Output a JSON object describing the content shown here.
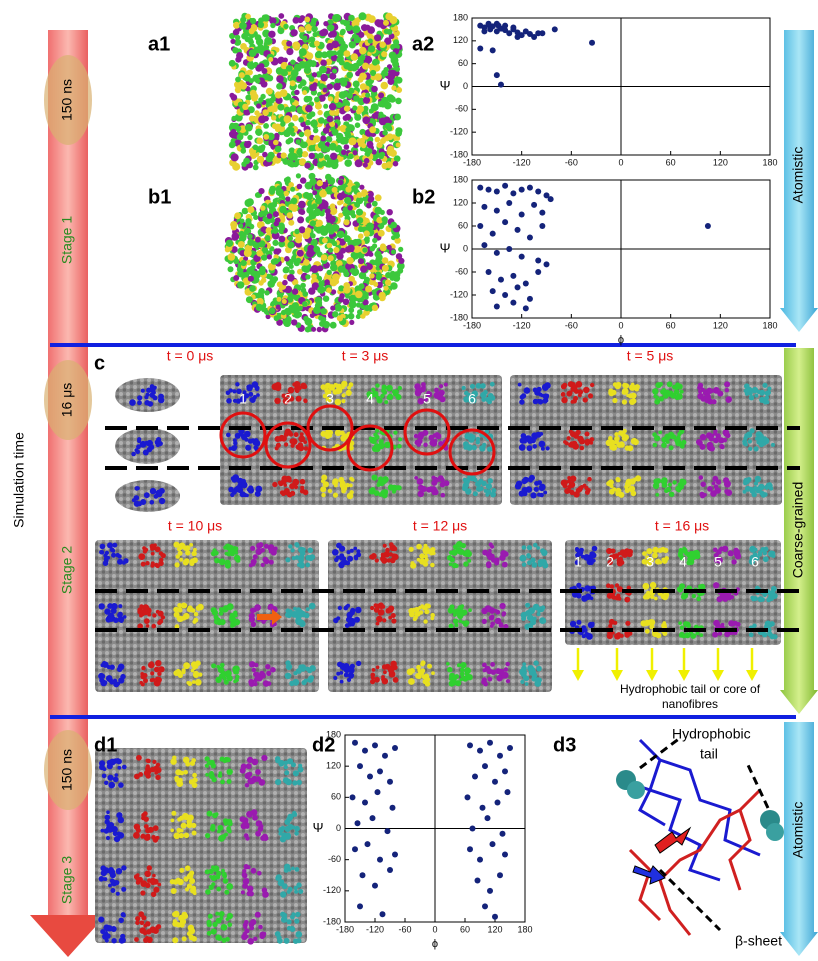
{
  "chart_data": [
    {
      "type": "scatter",
      "ylabel": "Ψ",
      "color": "#14237a",
      "x": [
        -170,
        -165,
        -160,
        -158,
        -155,
        -150,
        -148,
        -145,
        -140,
        -135,
        -130,
        -125,
        -120,
        -115,
        -110,
        -105,
        -100,
        -160,
        -150,
        -140,
        -130,
        -170,
        -155,
        -150,
        -145,
        -80,
        -35,
        -165,
        -125,
        -95
      ],
      "y": [
        160,
        155,
        162,
        150,
        158,
        145,
        160,
        152,
        148,
        140,
        150,
        142,
        135,
        145,
        138,
        130,
        140,
        165,
        165,
        160,
        155,
        100,
        95,
        30,
        5,
        150,
        115,
        145,
        130,
        140
      ],
      "xlim": [
        -180,
        180
      ],
      "ylim": [
        -180,
        180
      ],
      "xticks": [
        -180,
        -120,
        -60,
        0,
        60,
        120,
        180
      ],
      "yticks": [
        -180,
        -120,
        -60,
        0,
        60,
        120,
        180
      ]
    },
    {
      "type": "scatter",
      "xlabel": "ϕ",
      "ylabel": "Ψ",
      "color": "#14237a",
      "x": [
        -170,
        -160,
        -150,
        -140,
        -130,
        -120,
        -110,
        -100,
        -90,
        -85,
        -165,
        -150,
        -135,
        -120,
        -105,
        -95,
        -170,
        -155,
        -140,
        -125,
        -110,
        -95,
        -165,
        -150,
        -135,
        -120,
        -100,
        -90,
        -160,
        -145,
        -130,
        -115,
        -100,
        -155,
        -140,
        -125,
        -110,
        -150,
        -130,
        -115,
        105
      ],
      "y": [
        160,
        155,
        150,
        165,
        145,
        155,
        160,
        150,
        140,
        130,
        110,
        100,
        120,
        90,
        115,
        95,
        60,
        40,
        70,
        50,
        30,
        60,
        10,
        -10,
        0,
        -20,
        -30,
        -40,
        -60,
        -80,
        -70,
        -90,
        -60,
        -110,
        -120,
        -100,
        -130,
        -150,
        -140,
        -155,
        60
      ],
      "xlim": [
        -180,
        180
      ],
      "ylim": [
        -180,
        180
      ],
      "xticks": [
        -180,
        -120,
        -60,
        0,
        60,
        120,
        180
      ],
      "yticks": [
        -180,
        -120,
        -60,
        0,
        60,
        120,
        180
      ]
    },
    {
      "type": "scatter",
      "xlabel": "ϕ",
      "ylabel": "Ψ",
      "color": "#14237a",
      "x": [
        -160,
        -140,
        -120,
        -100,
        -80,
        -150,
        -130,
        -110,
        -90,
        -165,
        -140,
        -115,
        -85,
        -155,
        -125,
        -95,
        -160,
        -135,
        -110,
        -80,
        -145,
        -120,
        -90,
        -150,
        -105,
        70,
        90,
        110,
        130,
        150,
        80,
        100,
        120,
        140,
        65,
        95,
        125,
        145,
        75,
        105,
        135,
        70,
        90,
        115,
        140,
        85,
        110,
        130,
        100,
        120
      ],
      "y": [
        165,
        150,
        160,
        140,
        155,
        120,
        100,
        110,
        90,
        60,
        50,
        70,
        40,
        10,
        20,
        -5,
        -40,
        -30,
        -60,
        -50,
        -90,
        -110,
        -80,
        -150,
        -165,
        160,
        150,
        165,
        140,
        155,
        100,
        120,
        90,
        110,
        60,
        40,
        50,
        70,
        0,
        20,
        -10,
        -40,
        -60,
        -30,
        -50,
        -100,
        -120,
        -90,
        -150,
        -170
      ],
      "xlim": [
        -180,
        180
      ],
      "ylim": [
        -180,
        180
      ],
      "xticks": [
        -180,
        -120,
        -60,
        0,
        60,
        120,
        180
      ],
      "yticks": [
        -180,
        -120,
        -60,
        0,
        60,
        120,
        180
      ]
    }
  ],
  "axis_title": "Simulation time",
  "stages": [
    "150 ns",
    "Stage 1",
    "16 μs",
    "Stage 2",
    "150 ns",
    "Stage 3"
  ],
  "phases": [
    "Atomistic",
    "Coarse-grained",
    "Atomistic"
  ],
  "panels": [
    "a1",
    "a2",
    "b1",
    "b2",
    "c",
    "d1",
    "d2",
    "d3"
  ],
  "times": [
    "t = 0 μs",
    "t = 3 μs",
    "t = 5 μs",
    "t = 10 μs",
    "t = 12 μs",
    "t = 16 μs"
  ],
  "fibres_t3": [
    "1",
    "2",
    "3",
    "4",
    "5",
    "6"
  ],
  "fibres_t16": [
    "1",
    "2",
    "3",
    "4",
    "5",
    "6"
  ],
  "annotations": {
    "core": [
      "Hydrophobic tail or core of",
      "nanofibres"
    ],
    "tail": [
      "Hydrophobic",
      "tail"
    ],
    "sheet": "β-sheet"
  }
}
